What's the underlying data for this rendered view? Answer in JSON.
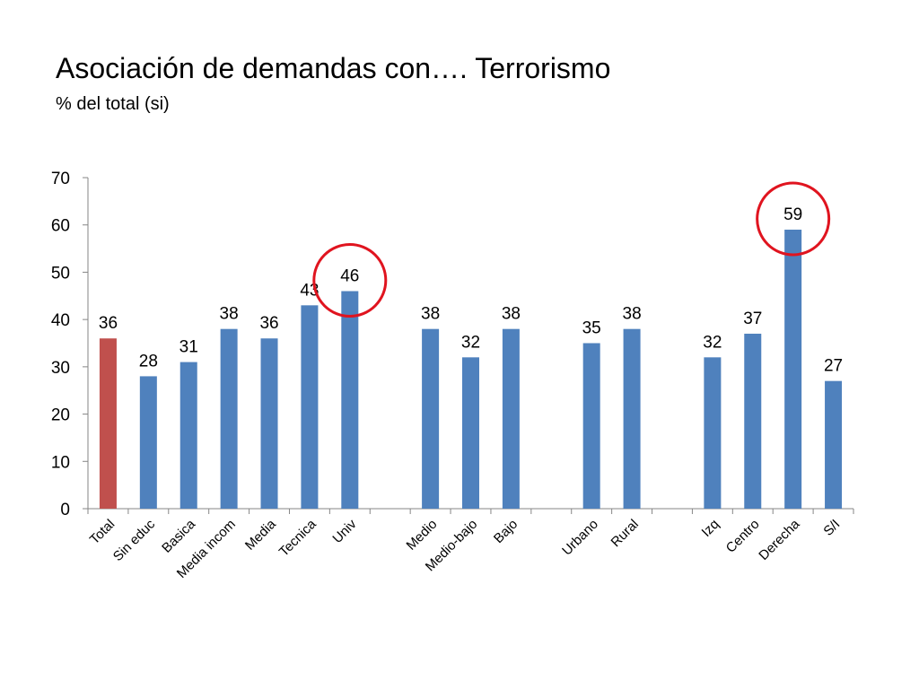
{
  "title": "Asociación de demandas con…. Terrorismo",
  "subtitle": "% del total (si)",
  "colors": {
    "bar": "#4f81bd",
    "highlight_bar": "#c0504d",
    "circle": "#e0141f",
    "axis": "#868686"
  },
  "chart_data": {
    "type": "bar",
    "title": "Asociación de demandas con…. Terrorismo",
    "subtitle": "% del total (si)",
    "xlabel": "",
    "ylabel": "",
    "ylim": [
      0,
      70
    ],
    "yticks": [
      0,
      10,
      20,
      30,
      40,
      50,
      60,
      70
    ],
    "grid": false,
    "categories": [
      "Total",
      "Sin educ",
      "Basica",
      "Media incom",
      "Media",
      "Tecnica",
      "Univ",
      "",
      "Medio",
      "Medio-bajo",
      "Bajo",
      "",
      "Urbano",
      "Rural",
      "",
      "Izq",
      "Centro",
      "Derecha",
      "S/I"
    ],
    "values": [
      36,
      28,
      31,
      38,
      36,
      43,
      46,
      null,
      38,
      32,
      38,
      null,
      35,
      38,
      null,
      32,
      37,
      59,
      27
    ],
    "highlighted_bar": "Total",
    "circled": [
      "Univ",
      "Derecha"
    ]
  }
}
